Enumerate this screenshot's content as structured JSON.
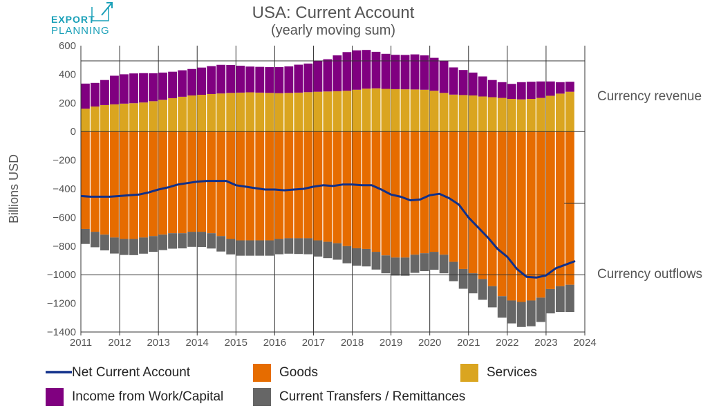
{
  "logo": {
    "line1": "EXPORT",
    "line2": "PLANNING"
  },
  "chart_data": {
    "type": "bar",
    "title": "USA: Current Account",
    "subtitle": "(yearly moving sum)",
    "ylabel": "Billions USD",
    "xlabel": "",
    "ylim": [
      -1400,
      600
    ],
    "xlim": [
      2011,
      2024
    ],
    "y_ticks": [
      600,
      400,
      200,
      0,
      -200,
      -400,
      -600,
      -800,
      -1000,
      -1200,
      -1400
    ],
    "y_tick_labels": [
      "600",
      "400",
      "200",
      "0",
      "−200",
      "−400",
      "−600",
      "−800",
      "−1000",
      "−1200",
      "−1400"
    ],
    "x_ticks": [
      2011,
      2012,
      2013,
      2014,
      2015,
      2016,
      2017,
      2018,
      2019,
      2020,
      2021,
      2022,
      2023,
      2024
    ],
    "x_tick_labels": [
      "2011",
      "2012",
      "2013",
      "2014",
      "2015",
      "2016",
      "2017",
      "2018",
      "2019",
      "2020",
      "2021",
      "2022",
      "2023",
      "2024"
    ],
    "grid": true,
    "annotations": [
      {
        "text": "Currency revenue",
        "y": 250
      },
      {
        "text": "Currency outflows",
        "y": -1000
      }
    ],
    "x": [
      2011.25,
      2011.5,
      2011.75,
      2012.0,
      2012.25,
      2012.5,
      2012.75,
      2013.0,
      2013.25,
      2013.5,
      2013.75,
      2014.0,
      2014.25,
      2014.5,
      2014.75,
      2015.0,
      2015.25,
      2015.5,
      2015.75,
      2016.0,
      2016.25,
      2016.5,
      2016.75,
      2017.0,
      2017.25,
      2017.5,
      2017.75,
      2018.0,
      2018.25,
      2018.5,
      2018.75,
      2019.0,
      2019.25,
      2019.5,
      2019.75,
      2020.0,
      2020.25,
      2020.5,
      2020.75,
      2021.0,
      2021.25,
      2021.5,
      2021.75,
      2022.0,
      2022.25,
      2022.5,
      2022.75,
      2023.0,
      2023.25,
      2023.5,
      2023.75
    ],
    "series": [
      {
        "name": "Services",
        "color": "#DAA520",
        "values": [
          160,
          175,
          185,
          190,
          195,
          198,
          203,
          212,
          222,
          233,
          243,
          252,
          257,
          262,
          266,
          270,
          272,
          274,
          272,
          270,
          268,
          270,
          272,
          275,
          278,
          280,
          282,
          285,
          292,
          300,
          302,
          298,
          296,
          295,
          294,
          292,
          285,
          270,
          258,
          255,
          252,
          245,
          240,
          235,
          228,
          225,
          228,
          235,
          250,
          265,
          278
        ]
      },
      {
        "name": "Income from Work/Capital",
        "color": "#800080",
        "values": [
          175,
          165,
          175,
          200,
          205,
          208,
          205,
          195,
          190,
          185,
          185,
          185,
          190,
          195,
          200,
          195,
          188,
          180,
          180,
          180,
          182,
          185,
          195,
          200,
          215,
          225,
          250,
          270,
          275,
          270,
          255,
          245,
          240,
          240,
          245,
          240,
          230,
          225,
          190,
          175,
          160,
          140,
          120,
          110,
          105,
          120,
          120,
          115,
          100,
          80,
          70
        ]
      },
      {
        "name": "Goods",
        "color": "#E66C00",
        "values": [
          -680,
          -700,
          -720,
          -740,
          -750,
          -750,
          -740,
          -730,
          -720,
          -710,
          -710,
          -700,
          -700,
          -710,
          -730,
          -750,
          -760,
          -760,
          -760,
          -760,
          -750,
          -745,
          -745,
          -745,
          -760,
          -770,
          -780,
          -800,
          -815,
          -820,
          -840,
          -865,
          -880,
          -880,
          -860,
          -850,
          -840,
          -860,
          -910,
          -960,
          -990,
          -1030,
          -1080,
          -1150,
          -1180,
          -1190,
          -1180,
          -1160,
          -1100,
          -1080,
          -1070
        ]
      },
      {
        "name": "Current Transfers / Remittances",
        "color": "#666666",
        "values": [
          -105,
          -108,
          -110,
          -112,
          -112,
          -113,
          -113,
          -110,
          -108,
          -108,
          -106,
          -105,
          -106,
          -107,
          -108,
          -108,
          -107,
          -107,
          -107,
          -107,
          -107,
          -108,
          -110,
          -112,
          -113,
          -114,
          -115,
          -120,
          -122,
          -122,
          -124,
          -125,
          -126,
          -127,
          -127,
          -125,
          -125,
          -130,
          -135,
          -138,
          -140,
          -145,
          -148,
          -150,
          -160,
          -175,
          -180,
          -170,
          -170,
          -180,
          -190
        ]
      }
    ],
    "net": {
      "name": "Net Current Account",
      "color": "#10308A",
      "x": [
        2011.0,
        2011.25,
        2011.5,
        2011.75,
        2012.0,
        2012.25,
        2012.5,
        2012.75,
        2013.0,
        2013.25,
        2013.5,
        2013.75,
        2014.0,
        2014.25,
        2014.5,
        2014.75,
        2015.0,
        2015.25,
        2015.5,
        2015.75,
        2016.0,
        2016.25,
        2016.5,
        2016.75,
        2017.0,
        2017.25,
        2017.5,
        2017.75,
        2018.0,
        2018.25,
        2018.5,
        2018.75,
        2019.0,
        2019.25,
        2019.5,
        2019.75,
        2020.0,
        2020.25,
        2020.5,
        2020.75,
        2021.0,
        2021.25,
        2021.5,
        2021.75,
        2022.0,
        2022.25,
        2022.5,
        2022.75,
        2023.0,
        2023.25,
        2023.5,
        2023.75
      ],
      "values": [
        -450,
        -455,
        -455,
        -455,
        -450,
        -445,
        -440,
        -425,
        -405,
        -390,
        -370,
        -360,
        -350,
        -345,
        -345,
        -345,
        -375,
        -385,
        -395,
        -405,
        -405,
        -410,
        -405,
        -400,
        -385,
        -375,
        -380,
        -370,
        -370,
        -375,
        -375,
        -405,
        -440,
        -455,
        -480,
        -475,
        -445,
        -435,
        -465,
        -510,
        -600,
        -670,
        -740,
        -820,
        -875,
        -960,
        -1015,
        -1020,
        -1005,
        -955,
        -930,
        -905
      ]
    },
    "legend": [
      {
        "label": "Net Current Account",
        "kind": "line",
        "color": "#10308A"
      },
      {
        "label": "Goods",
        "kind": "box",
        "color": "#E66C00"
      },
      {
        "label": "Services",
        "kind": "box",
        "color": "#DAA520"
      },
      {
        "label": "Income from Work/Capital",
        "kind": "box",
        "color": "#800080"
      },
      {
        "label": "Current Transfers / Remittances",
        "kind": "box",
        "color": "#666666"
      }
    ],
    "legend_position": "bottom"
  }
}
